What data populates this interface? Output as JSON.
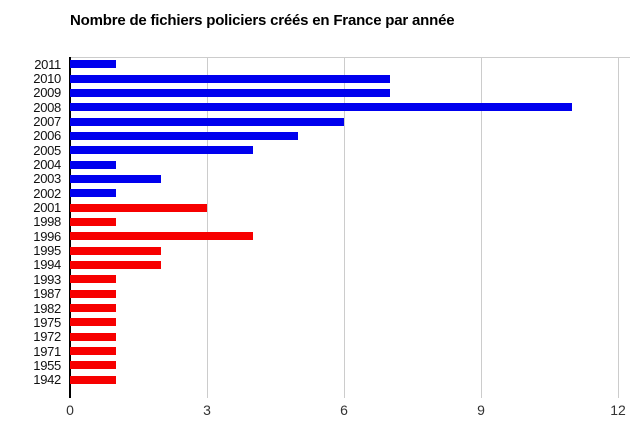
{
  "title": "Nombre de fichiers policiers créés en France par année",
  "chart_data": {
    "type": "bar",
    "orientation": "horizontal",
    "title": "Nombre de fichiers policiers créés en France par année",
    "categories": [
      "2011",
      "2010",
      "2009",
      "2008",
      "2007",
      "2006",
      "2005",
      "2004",
      "2003",
      "2002",
      "2001",
      "1998",
      "1996",
      "1995",
      "1994",
      "1993",
      "1987",
      "1982",
      "1975",
      "1972",
      "1971",
      "1955",
      "1942"
    ],
    "values": [
      1,
      7,
      7,
      11,
      6,
      5,
      4,
      1,
      2,
      1,
      3,
      1,
      4,
      2,
      2,
      1,
      1,
      1,
      1,
      1,
      1,
      1,
      1
    ],
    "bar_colors": [
      "blue",
      "blue",
      "blue",
      "blue",
      "blue",
      "blue",
      "blue",
      "blue",
      "blue",
      "blue",
      "red",
      "red",
      "red",
      "red",
      "red",
      "red",
      "red",
      "red",
      "red",
      "red",
      "red",
      "red",
      "red"
    ],
    "xlabel": "",
    "ylabel": "",
    "xlim": [
      0,
      12
    ],
    "x_ticks": [
      0,
      3,
      6,
      9,
      12
    ],
    "grid": true,
    "legend": "none"
  },
  "colors": {
    "blue": "#0000EE",
    "red": "#F70000",
    "gridline": "#CCCCCC",
    "axis": "#000000",
    "year_label": "#111111",
    "tick_label": "#333333",
    "background": "#FFFFFF"
  }
}
